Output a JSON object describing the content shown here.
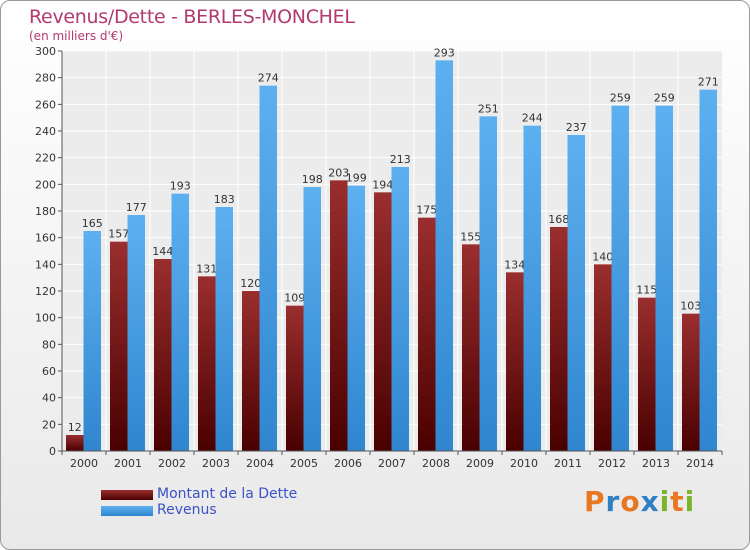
{
  "chart_data": {
    "type": "bar",
    "title": "Revenus/Dette - BERLES-MONCHEL",
    "subtitle": "(en milliers d'€)",
    "categories": [
      "2000",
      "2001",
      "2002",
      "2003",
      "2004",
      "2005",
      "2006",
      "2007",
      "2008",
      "2009",
      "2010",
      "2011",
      "2012",
      "2013",
      "2014"
    ],
    "series": [
      {
        "name": "Montant de la Dette",
        "color": "#7a1a1a",
        "values": [
          12,
          157,
          144,
          131,
          120,
          109,
          203,
          194,
          175,
          155,
          134,
          168,
          140,
          115,
          103
        ]
      },
      {
        "name": "Revenus",
        "color": "#4ea2e6",
        "values": [
          165,
          177,
          193,
          183,
          274,
          198,
          199,
          213,
          293,
          251,
          244,
          237,
          259,
          259,
          271
        ]
      }
    ],
    "ylim": [
      0,
      300
    ],
    "yticks": [
      0,
      20,
      40,
      60,
      80,
      100,
      120,
      140,
      160,
      180,
      200,
      220,
      240,
      260,
      280,
      300
    ],
    "grid": true,
    "legend": "bottom-left"
  },
  "logo": {
    "text": [
      "P",
      "r",
      "o",
      "x",
      "i",
      "t",
      "i"
    ],
    "colors": [
      "#e87722",
      "#2f7fc4",
      "#e87722",
      "#2f7fc4",
      "#7bb52a",
      "#e87722",
      "#7bb52a"
    ]
  }
}
